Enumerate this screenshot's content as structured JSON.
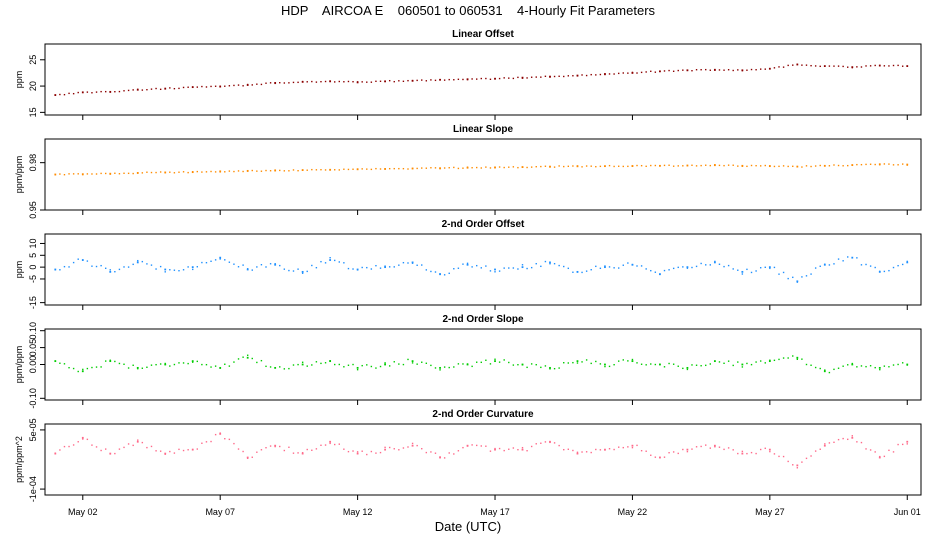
{
  "title": "HDP    AIRCOA E    060501 to 060531    4-Hourly Fit Parameters",
  "xlabel": "Date (UTC)",
  "x_axis": {
    "range": [
      "2006-04-30T15:00",
      "2006-06-01T12:00"
    ],
    "ticks": [
      {
        "date": "2006-05-02",
        "label": "May 02"
      },
      {
        "date": "2006-05-07",
        "label": "May 07"
      },
      {
        "date": "2006-05-12",
        "label": "May 12"
      },
      {
        "date": "2006-05-17",
        "label": "May 17"
      },
      {
        "date": "2006-05-22",
        "label": "May 22"
      },
      {
        "date": "2006-05-27",
        "label": "May 27"
      },
      {
        "date": "2006-06-01",
        "label": "Jun 01"
      }
    ]
  },
  "chart_data": [
    {
      "type": "scatter",
      "title": "Linear Offset",
      "ylabel": "ppm",
      "color": "#8b0000",
      "ylim": [
        14.5,
        28
      ],
      "yticks": [
        {
          "v": 15,
          "label": "15"
        },
        {
          "v": 20,
          "label": "20"
        },
        {
          "v": 25,
          "label": "25"
        }
      ],
      "x": [
        "2006-05-01",
        "2006-05-02",
        "2006-05-03",
        "2006-05-04",
        "2006-05-05",
        "2006-05-06",
        "2006-05-07",
        "2006-05-08",
        "2006-05-09",
        "2006-05-10",
        "2006-05-11",
        "2006-05-12",
        "2006-05-13",
        "2006-05-14",
        "2006-05-15",
        "2006-05-16",
        "2006-05-17",
        "2006-05-18",
        "2006-05-19",
        "2006-05-20",
        "2006-05-21",
        "2006-05-22",
        "2006-05-23",
        "2006-05-24",
        "2006-05-25",
        "2006-05-26",
        "2006-05-27",
        "2006-05-28",
        "2006-05-29",
        "2006-05-30",
        "2006-05-31",
        "2006-06-01"
      ],
      "y": [
        18.3,
        18.8,
        18.9,
        19.3,
        19.5,
        19.8,
        19.9,
        20.2,
        20.6,
        20.8,
        20.9,
        20.7,
        20.9,
        21.0,
        21.2,
        21.3,
        21.4,
        21.6,
        21.8,
        22.0,
        22.3,
        22.5,
        22.8,
        23.0,
        23.1,
        23.0,
        23.3,
        24.1,
        23.8,
        23.6,
        23.9,
        23.8
      ]
    },
    {
      "type": "scatter",
      "title": "Linear Slope",
      "ylabel": "ppm/ppm",
      "color": "#ff8c00",
      "ylim": [
        0.95,
        0.995
      ],
      "yticks": [
        {
          "v": 0.95,
          "label": "0.95"
        },
        {
          "v": 0.98,
          "label": "0.98"
        }
      ],
      "x": [
        "2006-05-01",
        "2006-05-02",
        "2006-05-03",
        "2006-05-04",
        "2006-05-05",
        "2006-05-06",
        "2006-05-07",
        "2006-05-08",
        "2006-05-09",
        "2006-05-10",
        "2006-05-11",
        "2006-05-12",
        "2006-05-13",
        "2006-05-14",
        "2006-05-15",
        "2006-05-16",
        "2006-05-17",
        "2006-05-18",
        "2006-05-19",
        "2006-05-20",
        "2006-05-21",
        "2006-05-22",
        "2006-05-23",
        "2006-05-24",
        "2006-05-25",
        "2006-05-26",
        "2006-05-27",
        "2006-05-28",
        "2006-05-29",
        "2006-05-30",
        "2006-05-31",
        "2006-06-01"
      ],
      "y": [
        0.9725,
        0.9727,
        0.973,
        0.9735,
        0.9738,
        0.974,
        0.9745,
        0.9748,
        0.975,
        0.9753,
        0.9755,
        0.9758,
        0.976,
        0.9763,
        0.9765,
        0.9768,
        0.977,
        0.9772,
        0.9775,
        0.9777,
        0.9778,
        0.9779,
        0.978,
        0.9782,
        0.9784,
        0.978,
        0.9778,
        0.9775,
        0.978,
        0.9785,
        0.979,
        0.9788
      ]
    },
    {
      "type": "scatter",
      "title": "2-nd Order Offset",
      "ylabel": "ppm",
      "color": "#1e90ff",
      "ylim": [
        -16,
        14
      ],
      "yticks": [
        {
          "v": -15,
          "label": "-15"
        },
        {
          "v": -5,
          "label": "-5"
        },
        {
          "v": 0,
          "label": "0"
        },
        {
          "v": 5,
          "label": "5"
        },
        {
          "v": 10,
          "label": "10"
        }
      ],
      "x": [
        "2006-05-01",
        "2006-05-02",
        "2006-05-03",
        "2006-05-04",
        "2006-05-05",
        "2006-05-06",
        "2006-05-07",
        "2006-05-08",
        "2006-05-09",
        "2006-05-10",
        "2006-05-11",
        "2006-05-12",
        "2006-05-13",
        "2006-05-14",
        "2006-05-15",
        "2006-05-16",
        "2006-05-17",
        "2006-05-18",
        "2006-05-19",
        "2006-05-20",
        "2006-05-21",
        "2006-05-22",
        "2006-05-23",
        "2006-05-24",
        "2006-05-25",
        "2006-05-26",
        "2006-05-27",
        "2006-05-28",
        "2006-05-29",
        "2006-05-30",
        "2006-05-31",
        "2006-06-01"
      ],
      "y": [
        -1,
        3,
        -2,
        2,
        -1,
        0,
        4,
        -1,
        1,
        -2,
        3,
        -1,
        0,
        2,
        -3,
        1,
        -1,
        0,
        2,
        -2,
        0,
        1,
        -3,
        0,
        2,
        -2,
        0,
        -6,
        1,
        4,
        -2,
        2
      ]
    },
    {
      "type": "scatter",
      "title": "2-nd Order Slope",
      "ylabel": "ppm/ppm",
      "color": "#00cd00",
      "ylim": [
        -0.105,
        0.105
      ],
      "yticks": [
        {
          "v": -0.1,
          "label": "-0.10"
        },
        {
          "v": 0.0,
          "label": "0.00"
        },
        {
          "v": 0.05,
          "label": "0.05"
        },
        {
          "v": 0.1,
          "label": "0.10"
        }
      ],
      "x": [
        "2006-05-01",
        "2006-05-02",
        "2006-05-03",
        "2006-05-04",
        "2006-05-05",
        "2006-05-06",
        "2006-05-07",
        "2006-05-08",
        "2006-05-09",
        "2006-05-10",
        "2006-05-11",
        "2006-05-12",
        "2006-05-13",
        "2006-05-14",
        "2006-05-15",
        "2006-05-16",
        "2006-05-17",
        "2006-05-18",
        "2006-05-19",
        "2006-05-20",
        "2006-05-21",
        "2006-05-22",
        "2006-05-23",
        "2006-05-24",
        "2006-05-25",
        "2006-05-26",
        "2006-05-27",
        "2006-05-28",
        "2006-05-29",
        "2006-05-30",
        "2006-05-31",
        "2006-06-01"
      ],
      "y": [
        0.01,
        -0.02,
        0.01,
        -0.01,
        0.0,
        0.01,
        -0.01,
        0.02,
        -0.01,
        0.0,
        0.01,
        -0.01,
        0.0,
        0.01,
        -0.01,
        0.0,
        0.01,
        0.0,
        -0.01,
        0.01,
        0.0,
        0.01,
        0.0,
        -0.01,
        0.01,
        0.0,
        0.01,
        0.02,
        -0.02,
        0.0,
        -0.01,
        0.0
      ]
    },
    {
      "type": "scatter",
      "title": "2-nd Order Curvature",
      "ylabel": "ppm/ppm^2",
      "color": "#ff6a8a",
      "ylim": [
        -0.000115,
        6.5e-05
      ],
      "yticks": [
        {
          "v": -0.0001,
          "label": "-1e-04"
        },
        {
          "v": 5e-05,
          "label": "5e-05"
        }
      ],
      "x": [
        "2006-05-01",
        "2006-05-02",
        "2006-05-03",
        "2006-05-04",
        "2006-05-05",
        "2006-05-06",
        "2006-05-07",
        "2006-05-08",
        "2006-05-09",
        "2006-05-10",
        "2006-05-11",
        "2006-05-12",
        "2006-05-13",
        "2006-05-14",
        "2006-05-15",
        "2006-05-16",
        "2006-05-17",
        "2006-05-18",
        "2006-05-19",
        "2006-05-20",
        "2006-05-21",
        "2006-05-22",
        "2006-05-23",
        "2006-05-24",
        "2006-05-25",
        "2006-05-26",
        "2006-05-27",
        "2006-05-28",
        "2006-05-29",
        "2006-05-30",
        "2006-05-31",
        "2006-06-01"
      ],
      "y": [
        -1e-05,
        3e-05,
        -1e-05,
        2e-05,
        -1e-05,
        0.0,
        4e-05,
        -2e-05,
        1e-05,
        -1e-05,
        2e-05,
        -1e-05,
        0.0,
        1e-05,
        -2e-05,
        1e-05,
        0.0,
        0.0,
        2e-05,
        -1e-05,
        0.0,
        1e-05,
        -2e-05,
        0.0,
        1e-05,
        -1e-05,
        0.0,
        -4e-05,
        1e-05,
        3e-05,
        -2e-05,
        2e-05
      ]
    }
  ]
}
